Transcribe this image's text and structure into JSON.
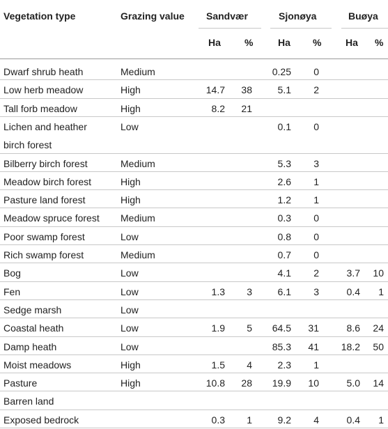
{
  "header": {
    "vegetation_type": "Vegetation type",
    "grazing_value": "Grazing value",
    "sites": [
      "Sandvær",
      "Sjonøya",
      "Buøya"
    ],
    "ha": "Ha",
    "pct": "%"
  },
  "rows": [
    {
      "type": [
        "Dwarf shrub heath"
      ],
      "grazing": "Medium",
      "s_ha": "",
      "s_pct": "",
      "j_ha": "0.25",
      "j_pct": "0",
      "b_ha": "",
      "b_pct": ""
    },
    {
      "type": [
        "Low herb meadow"
      ],
      "grazing": "High",
      "s_ha": "14.7",
      "s_pct": "38",
      "j_ha": "5.1",
      "j_pct": "2",
      "b_ha": "",
      "b_pct": ""
    },
    {
      "type": [
        "Tall forb meadow"
      ],
      "grazing": "High",
      "s_ha": "8.2",
      "s_pct": "21",
      "j_ha": "",
      "j_pct": "",
      "b_ha": "",
      "b_pct": ""
    },
    {
      "type": [
        "Lichen and heather",
        "birch forest"
      ],
      "grazing": "Low",
      "s_ha": "",
      "s_pct": "",
      "j_ha": "0.1",
      "j_pct": "0",
      "b_ha": "",
      "b_pct": ""
    },
    {
      "type": [
        "Bilberry birch forest"
      ],
      "grazing": "Medium",
      "s_ha": "",
      "s_pct": "",
      "j_ha": "5.3",
      "j_pct": "3",
      "b_ha": "",
      "b_pct": ""
    },
    {
      "type": [
        "Meadow birch forest"
      ],
      "grazing": "High",
      "s_ha": "",
      "s_pct": "",
      "j_ha": "2.6",
      "j_pct": "1",
      "b_ha": "",
      "b_pct": ""
    },
    {
      "type": [
        "Pasture land forest"
      ],
      "grazing": "High",
      "s_ha": "",
      "s_pct": "",
      "j_ha": "1.2",
      "j_pct": "1",
      "b_ha": "",
      "b_pct": ""
    },
    {
      "type": [
        "Meadow spruce forest"
      ],
      "grazing": "Medium",
      "s_ha": "",
      "s_pct": "",
      "j_ha": "0.3",
      "j_pct": "0",
      "b_ha": "",
      "b_pct": ""
    },
    {
      "type": [
        "Poor swamp forest"
      ],
      "grazing": "Low",
      "s_ha": "",
      "s_pct": "",
      "j_ha": "0.8",
      "j_pct": "0",
      "b_ha": "",
      "b_pct": ""
    },
    {
      "type": [
        "Rich swamp forest"
      ],
      "grazing": "Medium",
      "s_ha": "",
      "s_pct": "",
      "j_ha": "0.7",
      "j_pct": "0",
      "b_ha": "",
      "b_pct": ""
    },
    {
      "type": [
        "Bog"
      ],
      "grazing": "Low",
      "s_ha": "",
      "s_pct": "",
      "j_ha": "4.1",
      "j_pct": "2",
      "b_ha": "3.7",
      "b_pct": "10"
    },
    {
      "type": [
        "Fen"
      ],
      "grazing": "Low",
      "s_ha": "1.3",
      "s_pct": "3",
      "j_ha": "6.1",
      "j_pct": "3",
      "b_ha": "0.4",
      "b_pct": "1"
    },
    {
      "type": [
        "Sedge marsh"
      ],
      "grazing": "Low",
      "s_ha": "",
      "s_pct": "",
      "j_ha": "",
      "j_pct": "",
      "b_ha": "",
      "b_pct": ""
    },
    {
      "type": [
        "Coastal heath"
      ],
      "grazing": "Low",
      "s_ha": "1.9",
      "s_pct": "5",
      "j_ha": "64.5",
      "j_pct": "31",
      "b_ha": "8.6",
      "b_pct": "24"
    },
    {
      "type": [
        "Damp heath"
      ],
      "grazing": "Low",
      "s_ha": "",
      "s_pct": "",
      "j_ha": "85.3",
      "j_pct": "41",
      "b_ha": "18.2",
      "b_pct": "50"
    },
    {
      "type": [
        "Moist meadows"
      ],
      "grazing": "High",
      "s_ha": "1.5",
      "s_pct": "4",
      "j_ha": "2.3",
      "j_pct": "1",
      "b_ha": "",
      "b_pct": ""
    },
    {
      "type": [
        "Pasture"
      ],
      "grazing": "High",
      "s_ha": "10.8",
      "s_pct": "28",
      "j_ha": "19.9",
      "j_pct": "10",
      "b_ha": "5.0",
      "b_pct": "14"
    },
    {
      "type": [
        "Barren land"
      ],
      "grazing": "",
      "s_ha": "",
      "s_pct": "",
      "j_ha": "",
      "j_pct": "",
      "b_ha": "",
      "b_pct": ""
    },
    {
      "type": [
        "Exposed bedrock"
      ],
      "grazing": "",
      "s_ha": "0.3",
      "s_pct": "1",
      "j_ha": "9.2",
      "j_pct": "4",
      "b_ha": "0.4",
      "b_pct": "1"
    }
  ]
}
